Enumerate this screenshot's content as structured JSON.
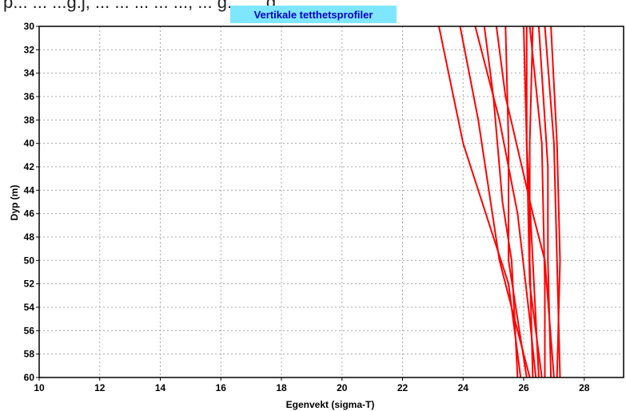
{
  "cropped_text": "p... ... ...g.j, ... ... ... ... ..., ... g... ... g... ...",
  "chart_data": {
    "type": "line",
    "title": "Vertikale tetthetsprofiler",
    "xlabel": "Egenvekt (sigma-T)",
    "ylabel": "Dyp (m)",
    "xlim": [
      10,
      29.3
    ],
    "ylim": [
      60,
      30
    ],
    "y_inverted": true,
    "xticks": [
      10,
      12,
      14,
      16,
      18,
      20,
      22,
      24,
      26,
      28
    ],
    "yticks": [
      30,
      32,
      34,
      36,
      38,
      40,
      42,
      44,
      46,
      48,
      50,
      52,
      54,
      56,
      58,
      60
    ],
    "grid": true,
    "legend": "none",
    "colors": {
      "series": "#ff0000",
      "title_bg": "#7fe6ff",
      "title_text": "#0000c8",
      "grid": "#a8a8a8"
    },
    "series": [
      {
        "points": [
          [
            23.2,
            30
          ],
          [
            24.0,
            40
          ],
          [
            25.0,
            48
          ],
          [
            25.5,
            52
          ],
          [
            25.9,
            60
          ]
        ]
      },
      {
        "points": [
          [
            23.9,
            30
          ],
          [
            24.5,
            38
          ],
          [
            25.2,
            50
          ],
          [
            25.7,
            55
          ],
          [
            26.2,
            60
          ]
        ]
      },
      {
        "points": [
          [
            24.4,
            30
          ],
          [
            25.2,
            38
          ],
          [
            25.8,
            46
          ],
          [
            26.2,
            55
          ],
          [
            26.4,
            60
          ]
        ]
      },
      {
        "points": [
          [
            25.4,
            30
          ],
          [
            25.5,
            40
          ],
          [
            25.5,
            50
          ],
          [
            25.8,
            55
          ],
          [
            26.1,
            60
          ]
        ]
      },
      {
        "points": [
          [
            24.7,
            30
          ],
          [
            25.0,
            36
          ],
          [
            25.3,
            45
          ],
          [
            25.6,
            50
          ],
          [
            25.8,
            60
          ]
        ]
      },
      {
        "points": [
          [
            26.1,
            30
          ],
          [
            26.1,
            40
          ],
          [
            26.3,
            50
          ],
          [
            26.5,
            60
          ]
        ]
      },
      {
        "points": [
          [
            26.3,
            30
          ],
          [
            26.2,
            40
          ],
          [
            26.2,
            50
          ],
          [
            26.3,
            60
          ]
        ]
      },
      {
        "points": [
          [
            26.7,
            30
          ],
          [
            27.0,
            40
          ],
          [
            27.1,
            50
          ],
          [
            27.2,
            60
          ]
        ]
      },
      {
        "points": [
          [
            26.9,
            30
          ],
          [
            27.1,
            40
          ],
          [
            27.2,
            50
          ],
          [
            27.1,
            60
          ]
        ]
      },
      {
        "points": [
          [
            26.5,
            30
          ],
          [
            26.8,
            42
          ],
          [
            26.8,
            50
          ],
          [
            26.9,
            60
          ]
        ]
      },
      {
        "points": [
          [
            26.2,
            30
          ],
          [
            26.6,
            40
          ],
          [
            26.7,
            52
          ],
          [
            26.7,
            60
          ]
        ]
      },
      {
        "points": [
          [
            26.0,
            30
          ],
          [
            26.1,
            40
          ],
          [
            26.2,
            52
          ],
          [
            26.6,
            60
          ]
        ]
      },
      {
        "points": [
          [
            25.1,
            30
          ],
          [
            25.4,
            36
          ],
          [
            26.3,
            46
          ],
          [
            26.7,
            50
          ],
          [
            27.0,
            60
          ]
        ]
      }
    ]
  }
}
